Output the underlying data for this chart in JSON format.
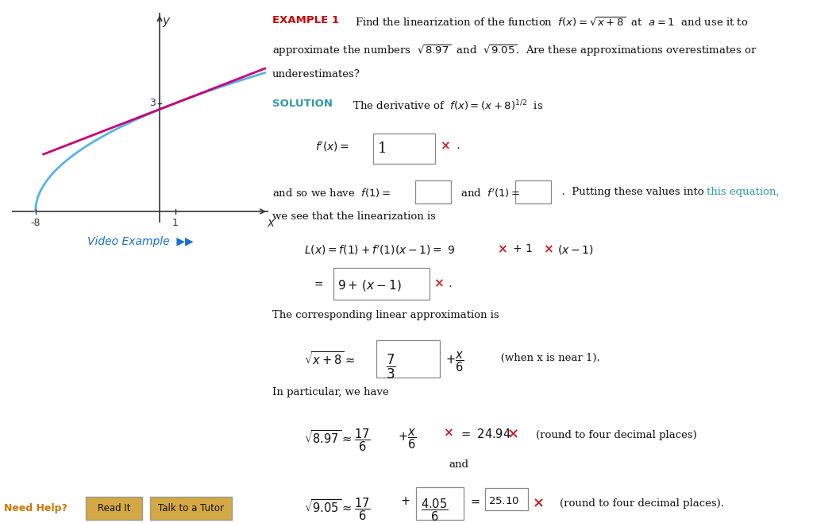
{
  "bg_color": "#ffffff",
  "graph": {
    "xlim": [
      -9.5,
      7
    ],
    "ylim": [
      -0.3,
      5.5
    ],
    "curve_color": "#56b4e9",
    "line_color": "#cc0077",
    "axis_color": "#333333",
    "label_color": "#333333"
  },
  "video_example_color": "#1a6fcc",
  "example_color": "#cc0000",
  "solution_color": "#3399aa",
  "link_color": "#3399aa",
  "text_color": "#111111",
  "red_x_color": "#cc2222",
  "box_color": "#888888",
  "bottom_bg": "#d4a843",
  "bottom_text": "#111111"
}
